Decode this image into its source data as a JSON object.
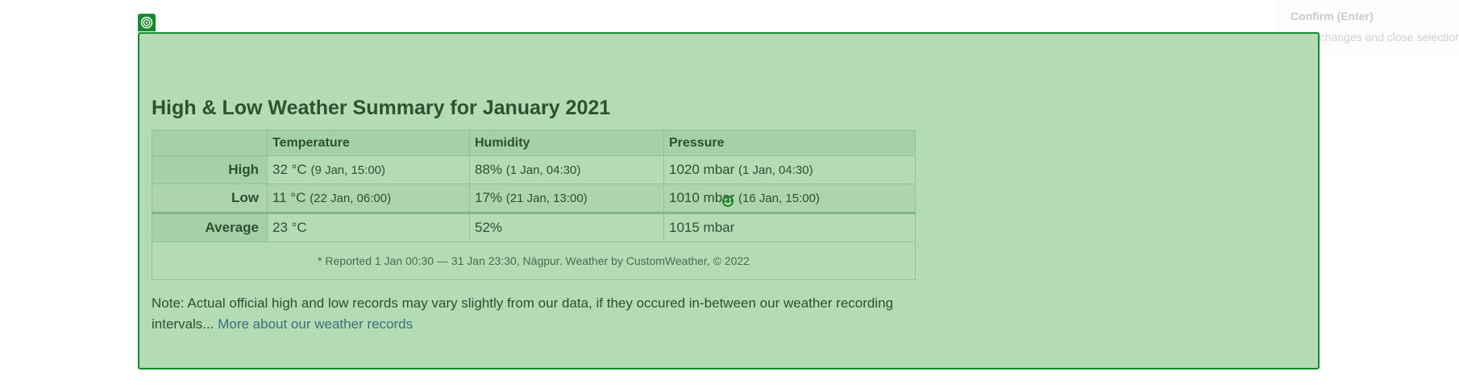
{
  "tooltip": {
    "title": "Confirm (Enter)",
    "description": "Save changes and close selection"
  },
  "handle": {
    "icon": "target-icon"
  },
  "summary": {
    "title": "High & Low Weather Summary for January 2021",
    "columns": [
      "Temperature",
      "Humidity",
      "Pressure"
    ],
    "rows": [
      {
        "label": "High",
        "temperature": "32 °C",
        "temperature_when": "(9 Jan, 15:00)",
        "humidity": "88%",
        "humidity_when": "(1 Jan, 04:30)",
        "pressure": "1020 mbar",
        "pressure_when": "(1 Jan, 04:30)"
      },
      {
        "label": "Low",
        "temperature": "11 °C",
        "temperature_when": "(22 Jan, 06:00)",
        "humidity": "17%",
        "humidity_when": "(21 Jan, 13:00)",
        "pressure": "1010 mbar",
        "pressure_when": "(16 Jan, 15:00)"
      },
      {
        "label": "Average",
        "temperature": "23 °C",
        "humidity": "52%",
        "pressure": "1015 mbar"
      }
    ],
    "footnote": "* Reported 1 Jan 00:30 — 31 Jan 23:30, Nāgpur. Weather by CustomWeather, © 2022"
  },
  "note": {
    "text": "Note: Actual official high and low records may vary slightly from our data, if they occured in-between our weather recording intervals... ",
    "link": "More about our weather records"
  },
  "colors": {
    "overlay": "#b3dcb5",
    "overlay_border": "#158a2a"
  }
}
